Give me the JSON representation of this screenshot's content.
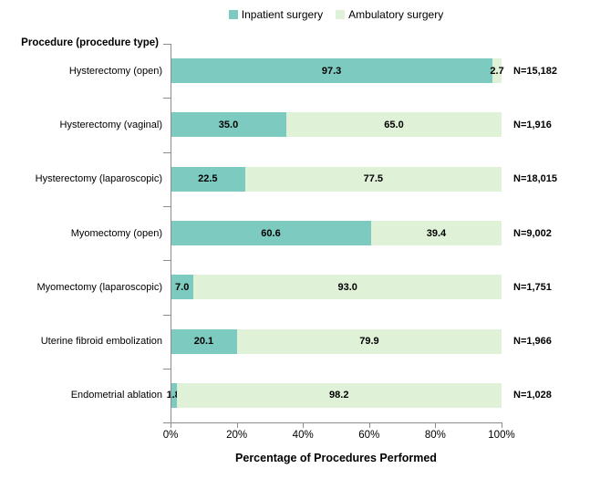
{
  "chart_data": {
    "type": "bar",
    "subtype": "horizontal-stacked-100pct",
    "title": "",
    "axis_header": "Procedure (procedure type)",
    "xlabel": "Percentage of Procedures Performed",
    "xlim": [
      0,
      100
    ],
    "x_ticks": [
      "0%",
      "20%",
      "40%",
      "60%",
      "80%",
      "100%"
    ],
    "grid": false,
    "legend_position": "top-center",
    "categories": [
      "Hysterectomy (open)",
      "Hysterectomy (vaginal)",
      "Hysterectomy (laparoscopic)",
      "Myomectomy (open)",
      "Myomectomy (laparoscopic)",
      "Uterine fibroid embolization",
      "Endometrial ablation"
    ],
    "series": [
      {
        "name": "Inpatient surgery",
        "color": "#7DCBC0",
        "values": [
          97.3,
          35.0,
          22.5,
          60.6,
          7.0,
          20.1,
          1.8
        ],
        "labels": [
          "97.3",
          "35.0",
          "22.5",
          "60.6",
          "7.0",
          "20.1",
          "1.8"
        ]
      },
      {
        "name": "Ambulatory surgery",
        "color": "#DFF1D7",
        "values": [
          2.7,
          65.0,
          77.5,
          39.4,
          93.0,
          79.9,
          98.2
        ],
        "labels": [
          "2.7",
          "65.0",
          "77.5",
          "39.4",
          "93.0",
          "79.9",
          "98.2"
        ]
      }
    ],
    "n_labels": [
      "N=15,182",
      "N=1,916",
      "N=18,015",
      "N=9,002",
      "N=1,751",
      "N=1,966",
      "N=1,028"
    ]
  },
  "colors": {
    "axis": "#8C8C8C",
    "text": "#000000",
    "background": "#FFFFFF"
  }
}
